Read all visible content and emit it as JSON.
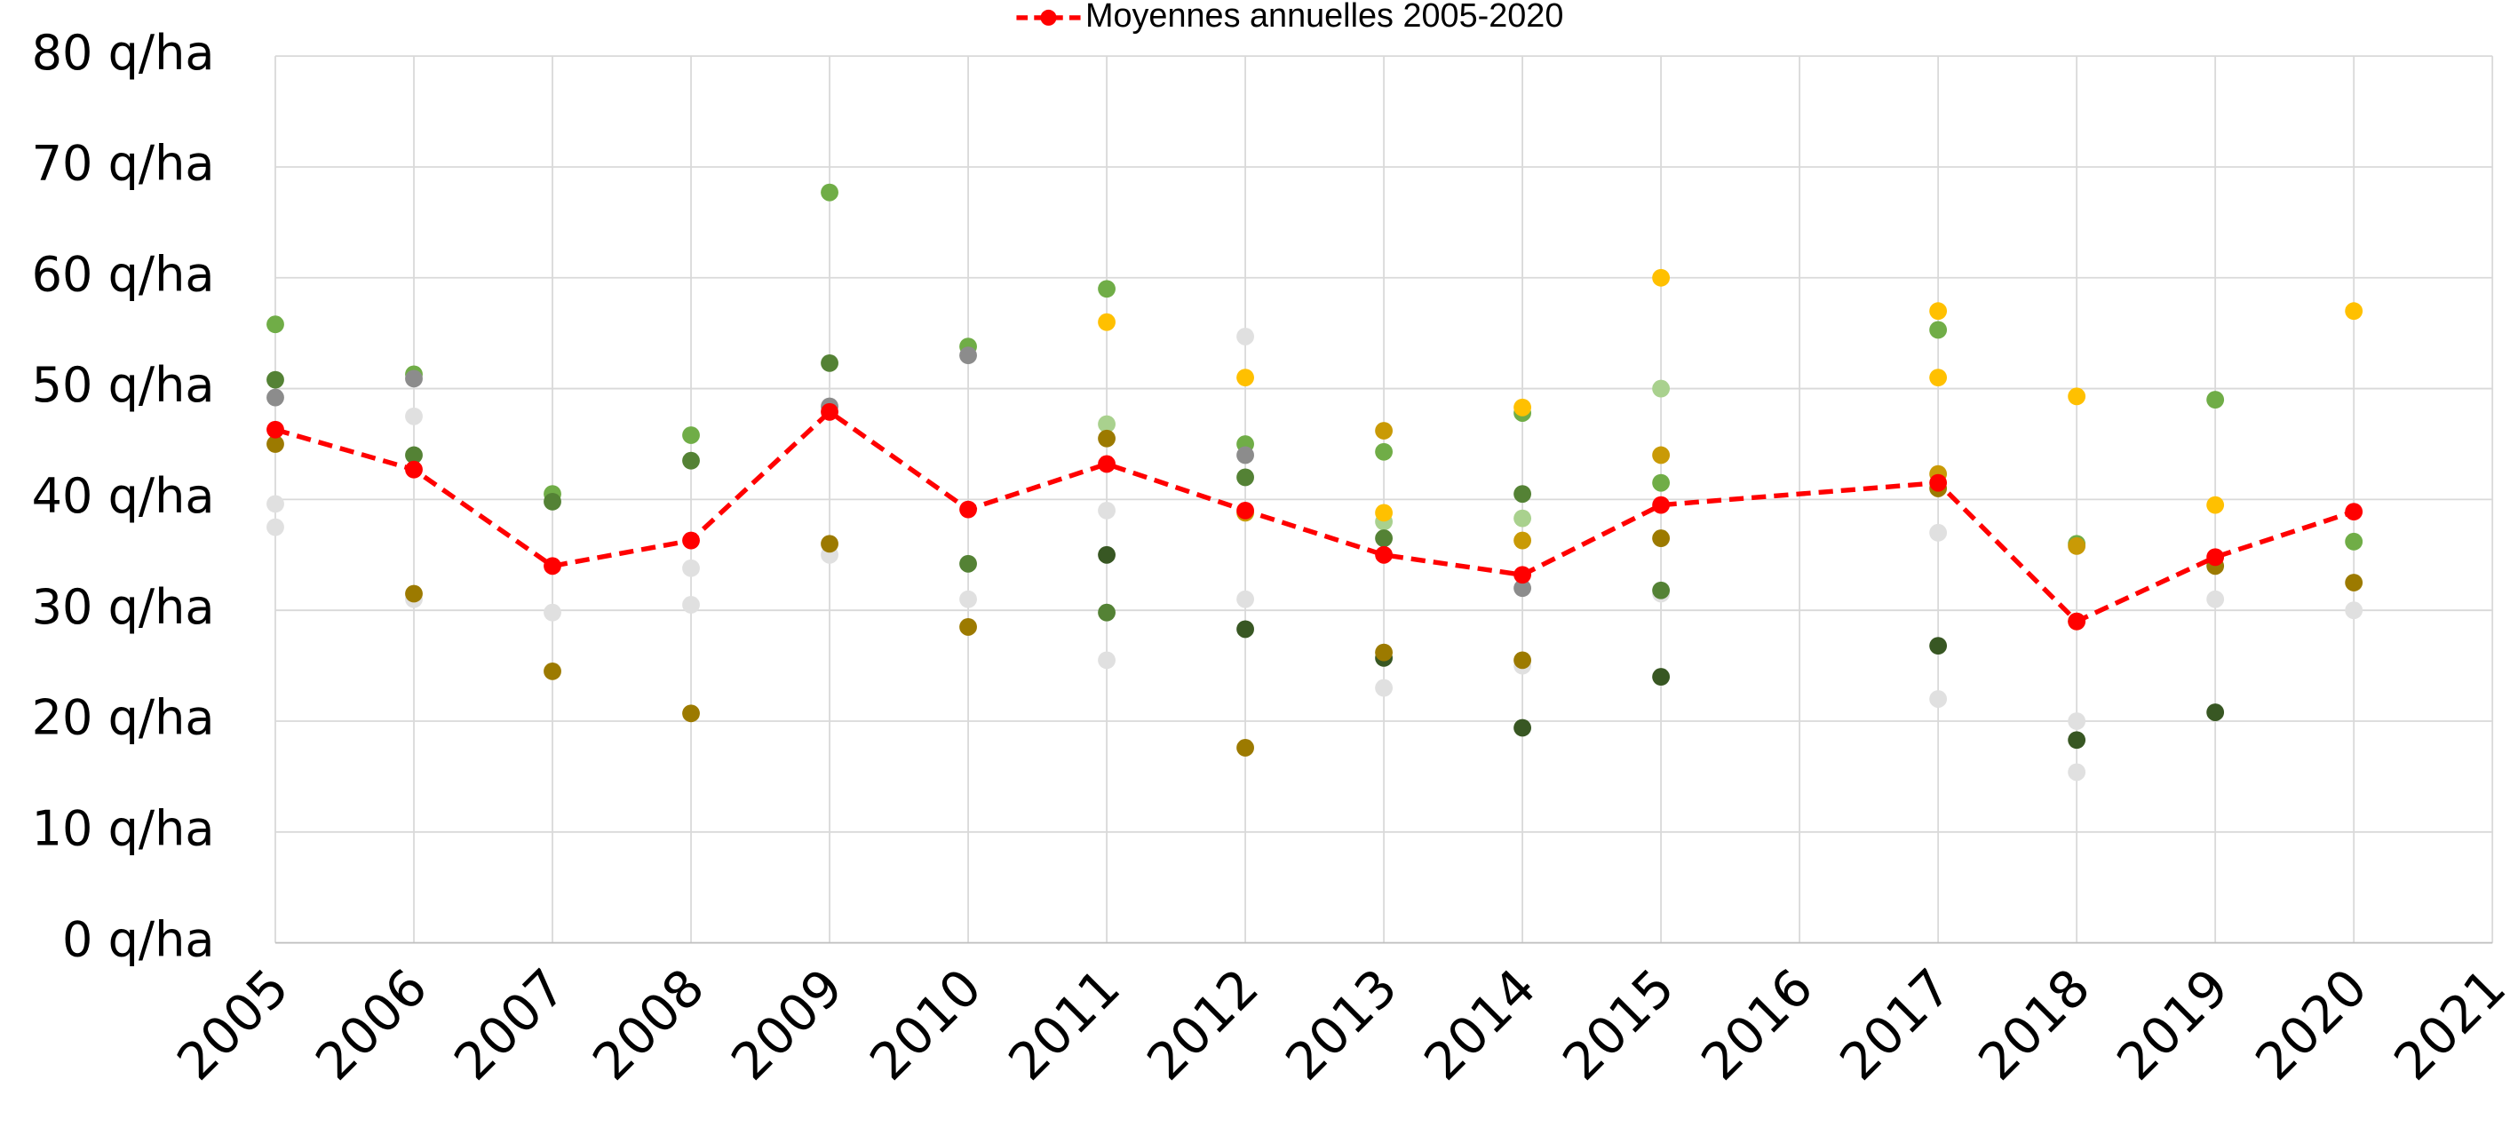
{
  "chart_data": {
    "type": "scatter",
    "xlim": [
      2005,
      2021
    ],
    "xticks": [
      2005,
      2006,
      2007,
      2008,
      2009,
      2010,
      2011,
      2012,
      2013,
      2014,
      2015,
      2016,
      2017,
      2018,
      2019,
      2020,
      2021
    ],
    "ylim": [
      0,
      80
    ],
    "yticks": [
      {
        "value": 0,
        "label": "0 q/ha"
      },
      {
        "value": 10,
        "label": "10 q/ha"
      },
      {
        "value": 20,
        "label": "20 q/ha"
      },
      {
        "value": 30,
        "label": "30 q/ha"
      },
      {
        "value": 40,
        "label": "40 q/ha"
      },
      {
        "value": 50,
        "label": "50 q/ha"
      },
      {
        "value": 60,
        "label": "60 q/ha"
      },
      {
        "value": 70,
        "label": "70 q/ha"
      },
      {
        "value": 80,
        "label": "80 q/ha"
      }
    ],
    "grid": true,
    "legend": "top",
    "series": [
      {
        "color": "#e0e0e0",
        "x": [
          2005,
          2006,
          2007,
          2008,
          2009,
          2010,
          2011,
          2012,
          2013,
          2014,
          2015,
          2017,
          2018,
          2019,
          2020
        ],
        "values": [
          39.6,
          47.5,
          29.8,
          33.8,
          35,
          31,
          39,
          54.7,
          23,
          25,
          31.5,
          37,
          20,
          31,
          30
        ]
      },
      {
        "color": "#e0e0e0",
        "x": [
          2005,
          2006,
          2008,
          2011,
          2012,
          2017,
          2018
        ],
        "values": [
          37.5,
          31,
          30.5,
          25.5,
          31,
          22,
          15.4
        ]
      },
      {
        "color": "#70ad47",
        "x": [
          2005,
          2006,
          2007,
          2008,
          2009,
          2010,
          2011,
          2012,
          2013,
          2014,
          2015,
          2017,
          2018,
          2019,
          2020
        ],
        "values": [
          55.8,
          51.3,
          40.5,
          45.8,
          67.7,
          53.8,
          59,
          45,
          44.3,
          47.8,
          41.5,
          55.3,
          36,
          49,
          36.2
        ]
      },
      {
        "color": "#a9d18e",
        "x": [
          2011,
          2013,
          2014,
          2015
        ],
        "values": [
          46.8,
          38,
          38.3,
          50
        ]
      },
      {
        "color": "#548235",
        "x": [
          2005,
          2006,
          2007,
          2008,
          2009,
          2010,
          2011,
          2012,
          2013,
          2014,
          2015
        ],
        "values": [
          50.8,
          44,
          39.8,
          43.5,
          52.3,
          34.2,
          29.8,
          42,
          36.5,
          40.5,
          31.8
        ]
      },
      {
        "color": "#385723",
        "x": [
          2011,
          2012,
          2013,
          2014,
          2015,
          2017,
          2018,
          2019
        ],
        "values": [
          35,
          28.3,
          25.7,
          19.4,
          24,
          26.8,
          18.3,
          20.8
        ]
      },
      {
        "color": "#8c8c8c",
        "x": [
          2005,
          2006,
          2009,
          2010,
          2012,
          2014
        ],
        "values": [
          49.2,
          50.9,
          48.4,
          53,
          44,
          32
        ]
      },
      {
        "color": "#9c7a00",
        "x": [
          2005,
          2006,
          2007,
          2008,
          2009,
          2010,
          2011,
          2012,
          2013,
          2014,
          2015,
          2017,
          2018,
          2019,
          2020
        ],
        "values": [
          45,
          31.5,
          24.5,
          20.7,
          36,
          28.5,
          45.5,
          17.6,
          26.2,
          25.5,
          36.5,
          41,
          29,
          34,
          32.5
        ]
      },
      {
        "color": "#c99a06",
        "x": [
          2012,
          2013,
          2014,
          2015,
          2017,
          2018
        ],
        "values": [
          38.8,
          46.2,
          36.3,
          44,
          42.3,
          35.8
        ]
      },
      {
        "color": "#ffc000",
        "x": [
          2011,
          2012,
          2013,
          2014,
          2015,
          2017,
          2017,
          2018,
          2019,
          2020
        ],
        "values": [
          56,
          51,
          38.8,
          48.3,
          60,
          57,
          51,
          49.3,
          39.5,
          57
        ]
      },
      {
        "name": "Moyennes annuelles 2005-2020",
        "color": "#ff0000",
        "line": "dashed",
        "x": [
          2005,
          2006,
          2007,
          2008,
          2009,
          2010,
          2011,
          2012,
          2013,
          2014,
          2015,
          2017,
          2018,
          2019,
          2020
        ],
        "values": [
          46.3,
          42.7,
          34,
          36.3,
          47.9,
          39.1,
          43.2,
          39,
          35,
          33.2,
          39.5,
          41.5,
          29,
          34.8,
          38.9
        ]
      }
    ]
  }
}
